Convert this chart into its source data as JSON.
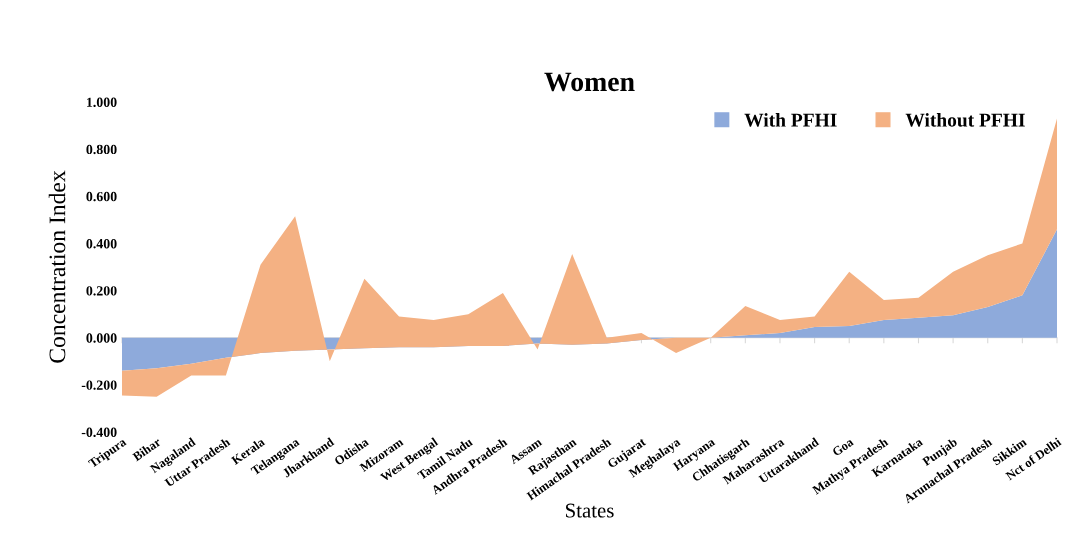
{
  "chart_data": {
    "type": "area",
    "title": "Women",
    "xlabel": "States",
    "ylabel": "Concentration Index",
    "categories": [
      "Tripura",
      "Bihar",
      "Nagaland",
      "Uttar Pradesh",
      "Kerala",
      "Telangana",
      "Jharkhand",
      "Odisha",
      "Mizoram",
      "West Bengal",
      "Tamil Nadu",
      "Andhra Pradesh",
      "Assam",
      "Rajasthan",
      "Himachal Pradesh",
      "Gujarat",
      "Meghalaya",
      "Haryana",
      "Chhatisgarh",
      "Maharashtra",
      "Uttarakhand",
      "Goa",
      "Mathya Pradesh",
      "Karnataka",
      "Punjab",
      "Arunachal Pradesh",
      "Sikkim",
      "Nct of Delhi"
    ],
    "stacked": true,
    "series": [
      {
        "name": "With PFHI",
        "color": "#8eaadb",
        "values": [
          -0.14,
          -0.13,
          -0.11,
          -0.085,
          -0.065,
          -0.055,
          -0.05,
          -0.045,
          -0.04,
          -0.04,
          -0.035,
          -0.035,
          -0.025,
          -0.03,
          -0.025,
          -0.01,
          0,
          0,
          0.01,
          0.02,
          0.045,
          0.05,
          0.075,
          0.085,
          0.095,
          0.13,
          0.18,
          0.46
        ]
      },
      {
        "name": "Without PFHI",
        "color": "#f4b183",
        "values": [
          -0.105,
          -0.12,
          -0.05,
          -0.075,
          0.375,
          0.57,
          -0.05,
          0.295,
          0.13,
          0.115,
          0.135,
          0.225,
          -0.025,
          0.385,
          0.025,
          0.03,
          -0.065,
          0,
          0.125,
          0.055,
          0.045,
          0.23,
          0.085,
          0.085,
          0.185,
          0.22,
          0.22,
          0.47
        ]
      }
    ],
    "ylim": [
      -0.4,
      1.0
    ],
    "yticks": [
      {
        "value": -0.4,
        "label": "-0.400"
      },
      {
        "value": -0.2,
        "label": "-0.200"
      },
      {
        "value": 0,
        "label": "0.000"
      },
      {
        "value": 0.2,
        "label": "0.200"
      },
      {
        "value": 0.4,
        "label": "0.400"
      },
      {
        "value": 0.6,
        "label": "0.600"
      },
      {
        "value": 0.8,
        "label": "0.800"
      },
      {
        "value": 1.0,
        "label": "1.000"
      }
    ],
    "legend": "top right"
  }
}
